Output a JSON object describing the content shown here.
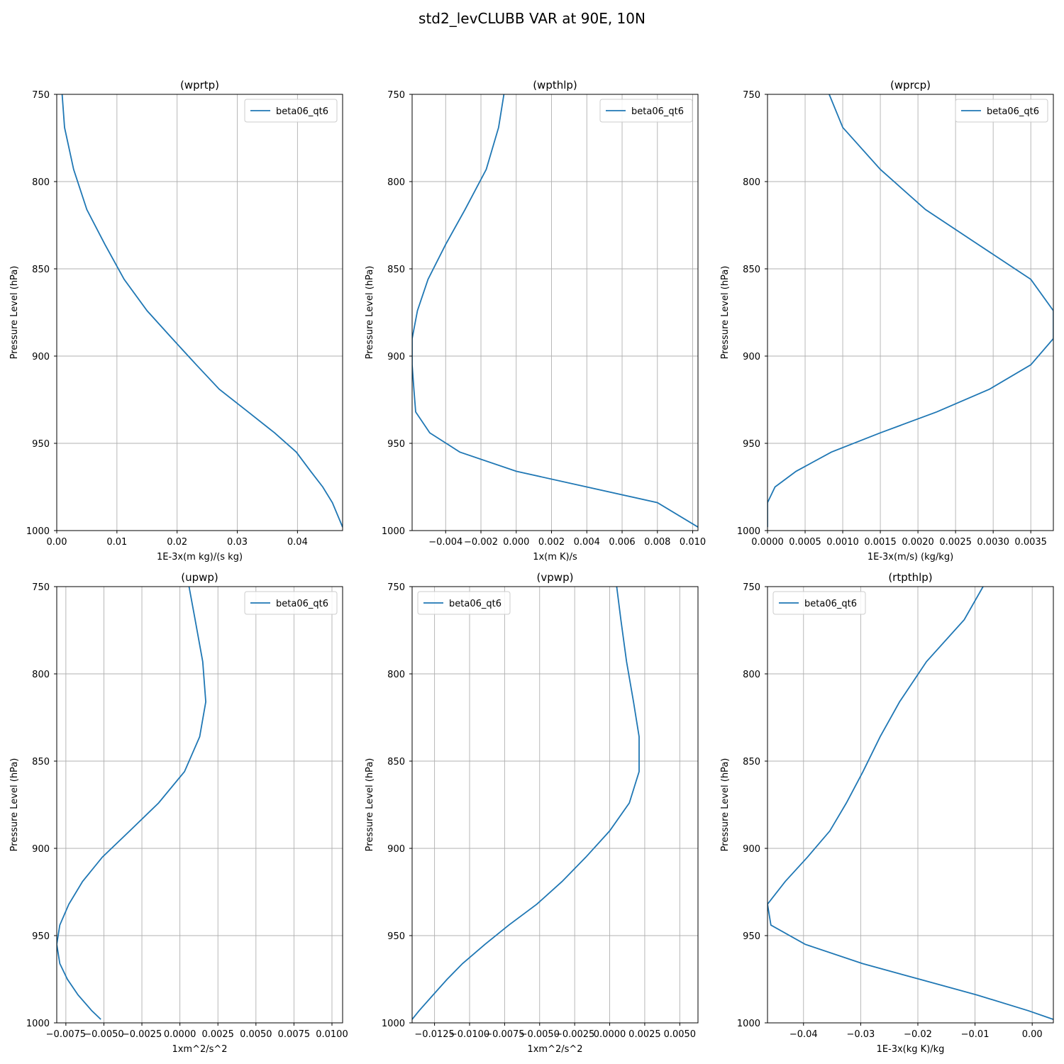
{
  "figure": {
    "title": "std2_levCLUBB VAR at 90E, 10N"
  },
  "style": {
    "line_color": "#1f77b4",
    "grid_color": "#b0b0b0",
    "axis_color": "#000000",
    "background": "#ffffff"
  },
  "chart_data": [
    {
      "type": "line",
      "title": "(wprtp)",
      "xlabel": "1E-3x(m kg)/(s kg)",
      "ylabel": "Pressure Level (hPa)",
      "xlim": [
        0,
        0.0475
      ],
      "ylim": [
        1000,
        750
      ],
      "y_inverted": true,
      "xticks": [
        0,
        0.01,
        0.02,
        0.03,
        0.04
      ],
      "xtick_labels": [
        "0.00",
        "0.01",
        "0.02",
        "0.03",
        "0.04"
      ],
      "yticks": [
        750,
        800,
        850,
        900,
        950,
        1000
      ],
      "ytick_labels": [
        "750",
        "800",
        "850",
        "900",
        "950",
        "1000"
      ],
      "grid": true,
      "legend": {
        "position": "upper right"
      },
      "series": [
        {
          "name": "beta06_qt6",
          "x": [
            0.0009,
            0.0013,
            0.0028,
            0.005,
            0.008,
            0.0112,
            0.015,
            0.0192,
            0.0232,
            0.027,
            0.0318,
            0.0362,
            0.0398,
            0.0422,
            0.0442,
            0.0458,
            0.0475
          ],
          "y": [
            750,
            769,
            793,
            816,
            836,
            856,
            874,
            890,
            905,
            919,
            932,
            944,
            955,
            966,
            975,
            984,
            998
          ]
        }
      ]
    },
    {
      "type": "line",
      "title": "(wpthlp)",
      "xlabel": "1x(m K)/s",
      "ylabel": "Pressure Level (hPa)",
      "xlim": [
        -0.0059,
        0.0103
      ],
      "ylim": [
        1000,
        750
      ],
      "y_inverted": true,
      "xticks": [
        -0.004,
        -0.002,
        0,
        0.002,
        0.004,
        0.006,
        0.008,
        0.01
      ],
      "xtick_labels": [
        "−0.004",
        "−0.002",
        "0.000",
        "0.002",
        "0.004",
        "0.006",
        "0.008",
        "0.010"
      ],
      "yticks": [
        750,
        800,
        850,
        900,
        950,
        1000
      ],
      "ytick_labels": [
        "750",
        "800",
        "850",
        "900",
        "950",
        "1000"
      ],
      "grid": true,
      "legend": {
        "position": "upper right"
      },
      "series": [
        {
          "name": "beta06_qt6",
          "x": [
            -0.0007,
            -0.001,
            -0.0017,
            -0.0029,
            -0.004,
            -0.005,
            -0.0056,
            -0.0059,
            -0.0059,
            -0.0058,
            -0.0057,
            -0.0049,
            -0.0032,
            0.0,
            0.004,
            0.008,
            0.0103
          ],
          "y": [
            750,
            769,
            793,
            816,
            836,
            856,
            874,
            890,
            905,
            919,
            932,
            944,
            955,
            966,
            975,
            984,
            998
          ]
        }
      ]
    },
    {
      "type": "line",
      "title": "(wprcp)",
      "xlabel": "1E-3x(m/s) (kg/kg)",
      "ylabel": "Pressure Level (hPa)",
      "xlim": [
        0,
        0.0038
      ],
      "ylim": [
        1000,
        750
      ],
      "y_inverted": true,
      "xticks": [
        0,
        0.0005,
        0.001,
        0.0015,
        0.002,
        0.0025,
        0.003,
        0.0035
      ],
      "xtick_labels": [
        "0.0000",
        "0.0005",
        "0.0010",
        "0.0015",
        "0.0020",
        "0.0025",
        "0.0030",
        "0.0035"
      ],
      "yticks": [
        750,
        800,
        850,
        900,
        950,
        1000
      ],
      "ytick_labels": [
        "750",
        "800",
        "850",
        "900",
        "950",
        "1000"
      ],
      "grid": true,
      "legend": {
        "position": "upper right"
      },
      "series": [
        {
          "name": "beta06_qt6",
          "x": [
            0.00082,
            0.001,
            0.0015,
            0.0021,
            0.0028,
            0.0035,
            0.0038,
            0.0038,
            0.0035,
            0.00295,
            0.00225,
            0.0015,
            0.00085,
            0.00038,
            0.0001,
            0.0,
            0.0
          ],
          "y": [
            750,
            769,
            793,
            816,
            836,
            856,
            874,
            890,
            905,
            919,
            932,
            944,
            955,
            966,
            975,
            984,
            998
          ]
        }
      ]
    },
    {
      "type": "line",
      "title": "(upwp)",
      "xlabel": "1xm^2/s^2",
      "ylabel": "Pressure Level (hPa)",
      "xlim": [
        -0.0081,
        0.0107
      ],
      "ylim": [
        1000,
        750
      ],
      "y_inverted": true,
      "xticks": [
        -0.0075,
        -0.005,
        -0.0025,
        0,
        0.0025,
        0.005,
        0.0075,
        0.01
      ],
      "xtick_labels": [
        "−0.0075",
        "−0.0050",
        "−0.0025",
        "0.0000",
        "0.0025",
        "0.0050",
        "0.0075",
        "0.0100"
      ],
      "yticks": [
        750,
        800,
        850,
        900,
        950,
        1000
      ],
      "ytick_labels": [
        "750",
        "800",
        "850",
        "900",
        "950",
        "1000"
      ],
      "grid": true,
      "legend": {
        "position": "upper right"
      },
      "series": [
        {
          "name": "beta06_qt6",
          "x": [
            0.0006,
            0.001,
            0.0015,
            0.0017,
            0.0013,
            0.0003,
            -0.0014,
            -0.0033,
            -0.0051,
            -0.0064,
            -0.0073,
            -0.0079,
            -0.0081,
            -0.0079,
            -0.0074,
            -0.0067,
            -0.0058,
            -0.0052
          ],
          "y": [
            750,
            769,
            793,
            816,
            836,
            856,
            874,
            890,
            905,
            919,
            932,
            944,
            955,
            966,
            975,
            984,
            993,
            998
          ]
        }
      ]
    },
    {
      "type": "line",
      "title": "(vpwp)",
      "xlabel": "1xm^2/s^2",
      "ylabel": "Pressure Level (hPa)",
      "xlim": [
        -0.0141,
        0.0063
      ],
      "ylim": [
        1000,
        750
      ],
      "y_inverted": true,
      "xticks": [
        -0.0125,
        -0.01,
        -0.0075,
        -0.005,
        -0.0025,
        0,
        0.0025,
        0.005
      ],
      "xtick_labels": [
        "−0.0125",
        "−0.0100",
        "−0.0075",
        "−0.0050",
        "−0.0025",
        "0.0000",
        "0.0025",
        "0.0050"
      ],
      "yticks": [
        750,
        800,
        850,
        900,
        950,
        1000
      ],
      "ytick_labels": [
        "750",
        "800",
        "850",
        "900",
        "950",
        "1000"
      ],
      "grid": true,
      "legend": {
        "position": "upper left"
      },
      "series": [
        {
          "name": "beta06_qt6",
          "x": [
            0.0005,
            0.0008,
            0.0012,
            0.0017,
            0.0021,
            0.0021,
            0.0014,
            0.0,
            -0.0017,
            -0.0034,
            -0.0052,
            -0.0072,
            -0.0089,
            -0.0105,
            -0.0116,
            -0.0126,
            -0.0136,
            -0.0141
          ],
          "y": [
            750,
            769,
            793,
            816,
            836,
            856,
            874,
            890,
            905,
            919,
            932,
            944,
            955,
            966,
            975,
            984,
            993,
            998
          ]
        }
      ]
    },
    {
      "type": "line",
      "title": "(rtpthlp)",
      "xlabel": "1E-3x(kg K)/kg",
      "ylabel": "Pressure Level (hPa)",
      "xlim": [
        -0.0463,
        0.0037
      ],
      "ylim": [
        1000,
        750
      ],
      "y_inverted": true,
      "xticks": [
        -0.04,
        -0.03,
        -0.02,
        -0.01,
        0
      ],
      "xtick_labels": [
        "−0.04",
        "−0.03",
        "−0.02",
        "−0.01",
        "0.00"
      ],
      "yticks": [
        750,
        800,
        850,
        900,
        950,
        1000
      ],
      "ytick_labels": [
        "750",
        "800",
        "850",
        "900",
        "950",
        "1000"
      ],
      "grid": true,
      "legend": {
        "position": "upper left"
      },
      "series": [
        {
          "name": "beta06_qt6",
          "x": [
            -0.0086,
            -0.0119,
            -0.0185,
            -0.0232,
            -0.0266,
            -0.0296,
            -0.0325,
            -0.0354,
            -0.0393,
            -0.0432,
            -0.0463,
            -0.0457,
            -0.0397,
            -0.0297,
            -0.0197,
            -0.0097,
            -0.0007,
            0.0037
          ],
          "y": [
            750,
            769,
            793,
            816,
            836,
            856,
            874,
            890,
            905,
            919,
            932,
            944,
            955,
            966,
            975,
            984,
            993,
            998
          ]
        }
      ]
    }
  ]
}
